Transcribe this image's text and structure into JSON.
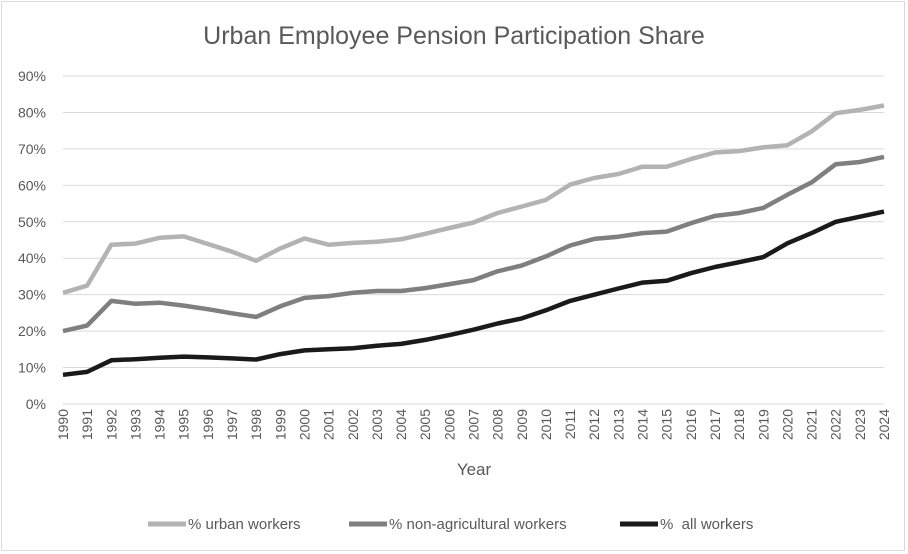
{
  "chart_data": {
    "type": "line",
    "title": "Urban Employee Pension Participation Share",
    "xlabel": "Year",
    "ylabel": "",
    "ylim": [
      0,
      90
    ],
    "y_ticks": [
      "0%",
      "10%",
      "20%",
      "30%",
      "40%",
      "50%",
      "60%",
      "70%",
      "80%",
      "90%"
    ],
    "grid": true,
    "legend_position": "bottom",
    "categories": [
      "1990",
      "1991",
      "1992",
      "1993",
      "1994",
      "1995",
      "1996",
      "1997",
      "1998",
      "1999",
      "2000",
      "2001",
      "2002",
      "2003",
      "2004",
      "2005",
      "2006",
      "2007",
      "2008",
      "2009",
      "2010",
      "2011",
      "2012",
      "2013",
      "2014",
      "2015",
      "2016",
      "2017",
      "2018",
      "2019",
      "2020",
      "2021",
      "2022",
      "2023",
      "2024"
    ],
    "series": [
      {
        "name": "% urban workers",
        "color": "#b3b3b3",
        "values": [
          30.5,
          32.5,
          43.7,
          44.0,
          45.6,
          46.0,
          43.9,
          41.8,
          39.3,
          42.7,
          45.4,
          43.7,
          44.2,
          44.5,
          45.2,
          46.7,
          48.3,
          49.8,
          52.4,
          54.2,
          56.0,
          60.2,
          62.0,
          63.1,
          65.1,
          65.1,
          67.2,
          69.0,
          69.4,
          70.4,
          71.0,
          74.8,
          79.8,
          80.7,
          81.9
        ]
      },
      {
        "name": "% non-agricultural workers",
        "color": "#7f7f7f",
        "values": [
          20.0,
          21.5,
          28.3,
          27.5,
          27.8,
          27.0,
          26.0,
          24.9,
          23.9,
          26.8,
          29.1,
          29.6,
          30.5,
          31.0,
          31.0,
          31.8,
          32.9,
          34.0,
          36.4,
          38.0,
          40.5,
          43.5,
          45.3,
          45.9,
          46.9,
          47.3,
          49.6,
          51.6,
          52.4,
          53.8,
          57.4,
          60.8,
          65.8,
          66.4,
          67.8
        ]
      },
      {
        "name": "%  all workers",
        "color": "#1a1a1a",
        "values": [
          8.0,
          8.8,
          12.0,
          12.3,
          12.7,
          13.0,
          12.8,
          12.5,
          12.2,
          13.7,
          14.7,
          15.0,
          15.3,
          16.0,
          16.5,
          17.6,
          18.9,
          20.4,
          22.1,
          23.5,
          25.7,
          28.3,
          30.0,
          31.7,
          33.3,
          33.8,
          35.9,
          37.6,
          38.9,
          40.3,
          44.1,
          46.9,
          50.0,
          51.4,
          52.8
        ]
      }
    ]
  }
}
